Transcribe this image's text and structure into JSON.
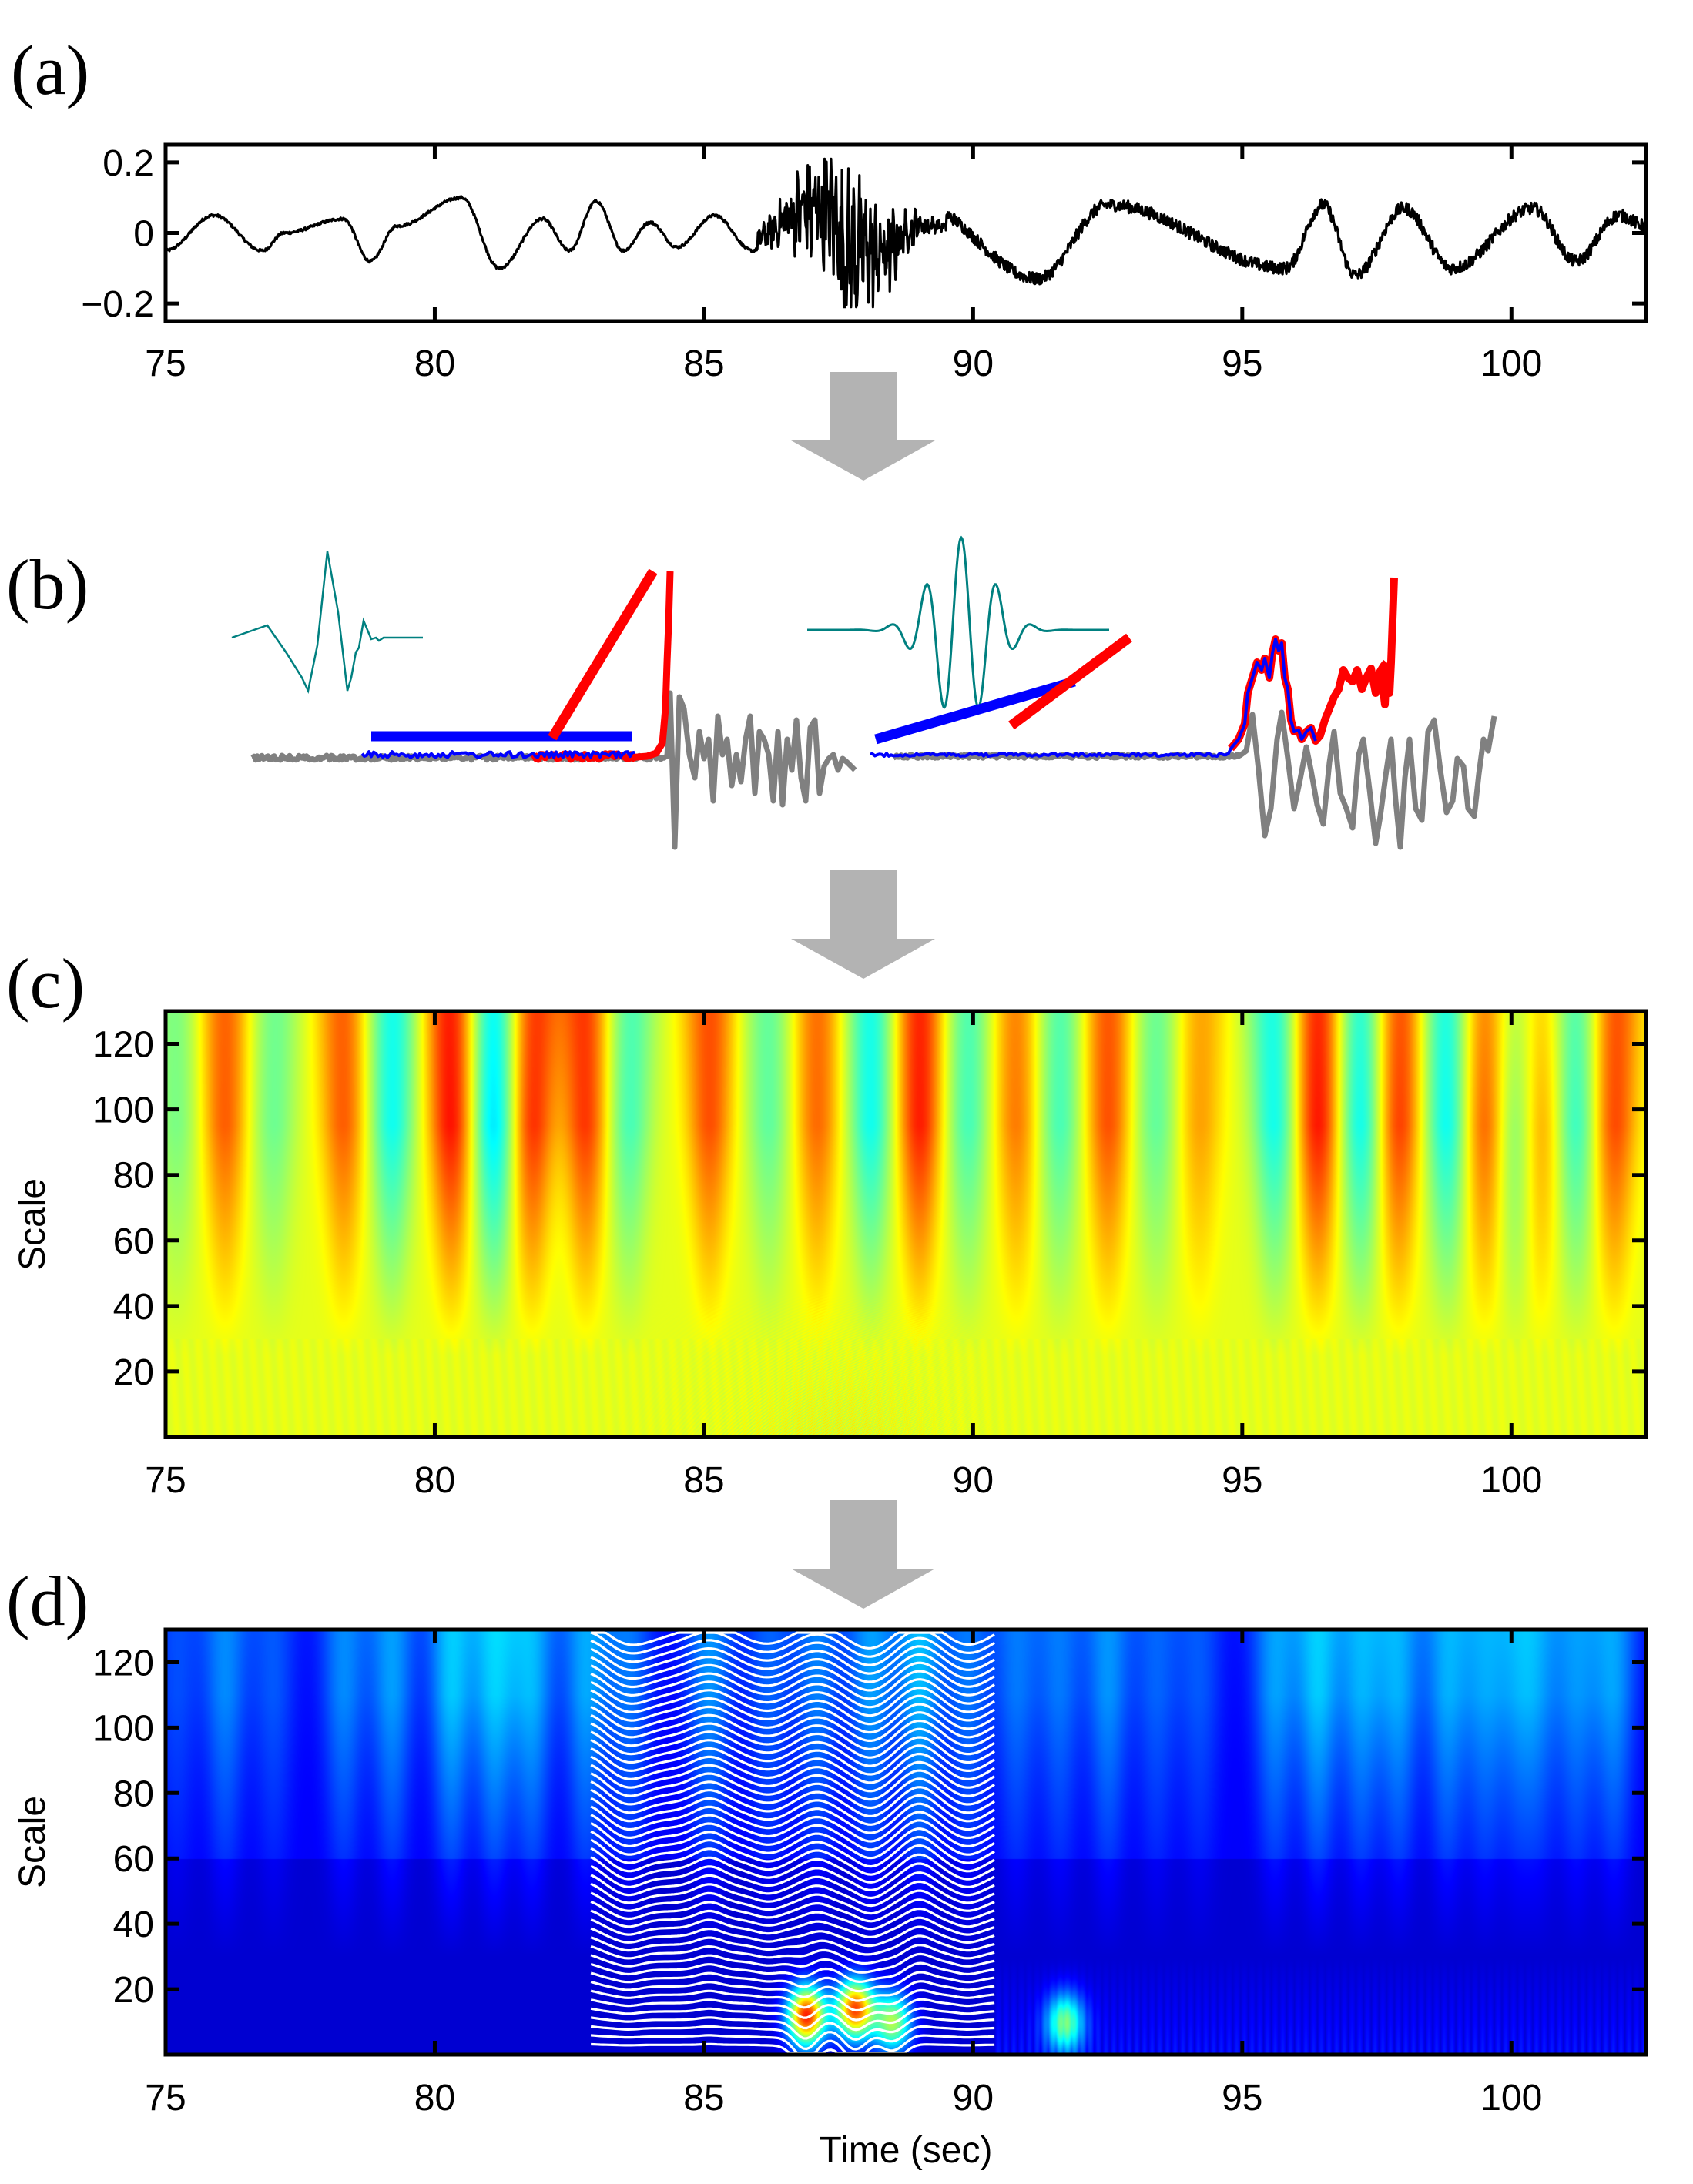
{
  "figure": {
    "panels": [
      {
        "id": "a",
        "label": "(a)"
      },
      {
        "id": "b",
        "label": "(b)"
      },
      {
        "id": "c",
        "label": "(c)"
      },
      {
        "id": "d",
        "label": "(d)"
      }
    ],
    "arrow_color": "#b3b3b3"
  },
  "chart_data": [
    {
      "panel": "a",
      "type": "line",
      "title": "",
      "xlabel": "",
      "ylabel": "",
      "xlim": [
        75,
        102.5
      ],
      "ylim": [
        -0.25,
        0.25
      ],
      "xticks": [
        75,
        80,
        85,
        90,
        95,
        100
      ],
      "xtick_labels": [
        "75",
        "80",
        "85",
        "90",
        "95",
        "100"
      ],
      "yticks": [
        0.2,
        0,
        -0.2
      ],
      "ytick_labels": [
        "0.2",
        "0",
        "−0.2"
      ],
      "line_color": "#000000",
      "series": [
        {
          "name": "seismic-trace",
          "description": "low-amplitude oscillation (~0.05–0.1) before t≈86 s, high-frequency burst peaking ~±0.2 near t≈87–88.5 s, then ~0.05–0.1 oscillations to 102.5 s",
          "key_points": [
            {
              "x": 75.0,
              "y": -0.05
            },
            {
              "x": 75.9,
              "y": 0.05
            },
            {
              "x": 76.8,
              "y": -0.05
            },
            {
              "x": 77.2,
              "y": 0.0
            },
            {
              "x": 78.3,
              "y": 0.04
            },
            {
              "x": 78.8,
              "y": -0.08
            },
            {
              "x": 79.3,
              "y": 0.02
            },
            {
              "x": 80.5,
              "y": 0.1
            },
            {
              "x": 81.2,
              "y": -0.1
            },
            {
              "x": 82.0,
              "y": 0.04
            },
            {
              "x": 82.5,
              "y": -0.05
            },
            {
              "x": 83.0,
              "y": 0.09
            },
            {
              "x": 83.5,
              "y": -0.05
            },
            {
              "x": 84.0,
              "y": 0.03
            },
            {
              "x": 84.5,
              "y": -0.04
            },
            {
              "x": 85.2,
              "y": 0.05
            },
            {
              "x": 85.9,
              "y": -0.05
            },
            {
              "x": 86.9,
              "y": 0.2
            },
            {
              "x": 87.4,
              "y": 0.2
            },
            {
              "x": 87.6,
              "y": -0.15
            },
            {
              "x": 88.3,
              "y": -0.2
            },
            {
              "x": 89.0,
              "y": 0.08
            },
            {
              "x": 91.2,
              "y": -0.13
            },
            {
              "x": 92.5,
              "y": 0.08
            },
            {
              "x": 95.8,
              "y": -0.1
            },
            {
              "x": 96.5,
              "y": 0.08
            },
            {
              "x": 97.1,
              "y": -0.12
            },
            {
              "x": 98.0,
              "y": 0.07
            },
            {
              "x": 98.9,
              "y": -0.1
            },
            {
              "x": 100.4,
              "y": 0.07
            },
            {
              "x": 101.2,
              "y": -0.08
            },
            {
              "x": 102.0,
              "y": 0.05
            },
            {
              "x": 102.5,
              "y": 0.02
            }
          ]
        }
      ]
    },
    {
      "panel": "b",
      "type": "line",
      "title": "",
      "description": "Schematic: two mother wavelets (teal) above grey signal traces; blue/red fitted slope lines and colored detection segments",
      "series": [
        {
          "name": "wavelet-left",
          "color": "#008080",
          "kind": "sharp transient wavelet"
        },
        {
          "name": "wavelet-right",
          "color": "#008080",
          "kind": "Morlet-like oscillatory wavelet"
        },
        {
          "name": "trace-left",
          "color": "#808080"
        },
        {
          "name": "trace-right",
          "color": "#808080"
        },
        {
          "name": "fit-line-blue-left",
          "color": "#0000ff"
        },
        {
          "name": "fit-line-red-left",
          "color": "#ff0000"
        },
        {
          "name": "fit-line-blue-right",
          "color": "#0000ff"
        },
        {
          "name": "fit-line-red-right",
          "color": "#ff0000"
        }
      ]
    },
    {
      "panel": "c",
      "type": "heatmap",
      "title": "",
      "xlabel": "",
      "ylabel": "Scale",
      "xlim": [
        75,
        102.5
      ],
      "ylim": [
        0,
        130
      ],
      "xticks": [
        75,
        80,
        85,
        90,
        95,
        100
      ],
      "xtick_labels": [
        "75",
        "80",
        "85",
        "90",
        "95",
        "100"
      ],
      "yticks": [
        120,
        100,
        80,
        60,
        40,
        20
      ],
      "ytick_labels": [
        "120",
        "100",
        "80",
        "60",
        "40",
        "20"
      ],
      "colormap": "jet",
      "description": "Continuous wavelet transform coefficients (signed); alternating red/blue vertical lobes at large scales; mostly green near zero at low scales",
      "lobes": [
        {
          "t": 75.2,
          "sign": -1,
          "strength": 0.4
        },
        {
          "t": 76.1,
          "sign": 1,
          "strength": 0.7
        },
        {
          "t": 77.0,
          "sign": -1,
          "strength": 0.45
        },
        {
          "t": 78.3,
          "sign": 1,
          "strength": 0.7
        },
        {
          "t": 79.2,
          "sign": -1,
          "strength": 0.8
        },
        {
          "t": 80.3,
          "sign": 1,
          "strength": 1.0
        },
        {
          "t": 81.1,
          "sign": -1,
          "strength": 1.0
        },
        {
          "t": 81.8,
          "sign": 1,
          "strength": 0.9
        },
        {
          "t": 82.8,
          "sign": 1,
          "strength": 0.85
        },
        {
          "t": 83.6,
          "sign": -1,
          "strength": 0.6
        },
        {
          "t": 85.1,
          "sign": 1,
          "strength": 0.75
        },
        {
          "t": 86.2,
          "sign": -1,
          "strength": 0.5
        },
        {
          "t": 87.1,
          "sign": 1,
          "strength": 0.65
        },
        {
          "t": 88.1,
          "sign": -1,
          "strength": 0.8
        },
        {
          "t": 89.0,
          "sign": 1,
          "strength": 0.95
        },
        {
          "t": 89.9,
          "sign": -1,
          "strength": 0.6
        },
        {
          "t": 90.8,
          "sign": 1,
          "strength": 0.6
        },
        {
          "t": 91.6,
          "sign": -1,
          "strength": 0.6
        },
        {
          "t": 92.5,
          "sign": 1,
          "strength": 0.75
        },
        {
          "t": 93.4,
          "sign": -1,
          "strength": 0.5
        },
        {
          "t": 94.2,
          "sign": 1,
          "strength": 0.45
        },
        {
          "t": 95.6,
          "sign": -1,
          "strength": 0.8
        },
        {
          "t": 96.4,
          "sign": 1,
          "strength": 1.0
        },
        {
          "t": 97.2,
          "sign": -1,
          "strength": 0.85
        },
        {
          "t": 97.9,
          "sign": 1,
          "strength": 0.85
        },
        {
          "t": 98.8,
          "sign": -1,
          "strength": 0.85
        },
        {
          "t": 99.5,
          "sign": 1,
          "strength": 0.75
        },
        {
          "t": 100.1,
          "sign": -1,
          "strength": 0.6
        },
        {
          "t": 100.5,
          "sign": 1,
          "strength": 0.6
        },
        {
          "t": 101.2,
          "sign": -1,
          "strength": 0.7
        },
        {
          "t": 101.9,
          "sign": 1,
          "strength": 0.8
        }
      ]
    },
    {
      "panel": "d",
      "type": "heatmap",
      "title": "",
      "xlabel": "Time (sec)",
      "ylabel": "Scale",
      "xlim": [
        75,
        102.5
      ],
      "ylim": [
        0,
        130
      ],
      "xticks": [
        75,
        80,
        85,
        90,
        95,
        100
      ],
      "xtick_labels": [
        "75",
        "80",
        "85",
        "90",
        "95",
        "100"
      ],
      "yticks": [
        120,
        100,
        80,
        60,
        40,
        20
      ],
      "ytick_labels": [
        "120",
        "100",
        "80",
        "60",
        "40",
        "20"
      ],
      "colormap": "jet",
      "description": "Magnitude of wavelet coefficients; hot spot (red/yellow) at low scales ~5–25 between t≈86.5–88.5 s; overlaid white stacked coefficient traces from t≈82.9 to 90.4 s",
      "overlay": {
        "color": "#ffffff",
        "t_start": 82.9,
        "t_end": 90.4,
        "trace_count": 50
      },
      "hotspots": [
        {
          "t": 86.9,
          "scale": 12,
          "level": 1.0
        },
        {
          "t": 87.8,
          "scale": 14,
          "level": 0.95
        },
        {
          "t": 88.5,
          "scale": 10,
          "level": 0.6
        },
        {
          "t": 91.7,
          "scale": 10,
          "level": 0.5
        }
      ]
    }
  ]
}
